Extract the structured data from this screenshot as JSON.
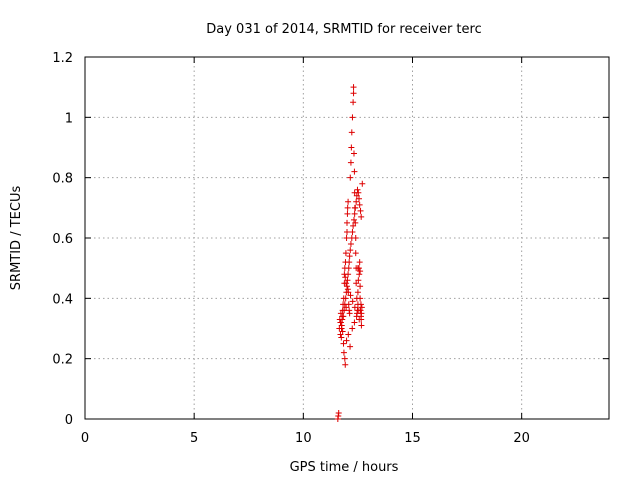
{
  "chart_data": {
    "type": "scatter",
    "title": "Day 031 of 2014, SRMTID for receiver terc",
    "xlabel": "GPS time / hours",
    "ylabel": "SRMTID / TECUs",
    "xlim": [
      0,
      24
    ],
    "ylim": [
      0,
      1.2
    ],
    "xticks": [
      0,
      5,
      10,
      15,
      20
    ],
    "yticks": [
      0,
      0.2,
      0.4,
      0.6,
      0.8,
      1,
      1.2
    ],
    "xtick_labels": [
      "0",
      "5",
      "10",
      "15",
      "20"
    ],
    "ytick_labels": [
      "0",
      "0.2",
      "0.4",
      "0.6",
      "0.8",
      "1",
      "1.2"
    ],
    "grid": true,
    "marker": "+",
    "color": "#dd0000",
    "series": [
      {
        "x": [
          11.58,
          11.6,
          11.62,
          11.65,
          11.67,
          11.7,
          11.7,
          11.72,
          11.74,
          11.75,
          11.76,
          11.78,
          11.8,
          11.8,
          11.82,
          11.84,
          11.85,
          11.86,
          11.88,
          11.88,
          11.9,
          11.9,
          11.92,
          11.93,
          11.95,
          11.96,
          11.98,
          12.0,
          12.0,
          12.02,
          12.03,
          12.05,
          12.06,
          12.08,
          12.1,
          12.12,
          12.15,
          12.18,
          12.2,
          12.22,
          12.25,
          12.28,
          12.3,
          12.3,
          12.32,
          12.34,
          12.35,
          12.36,
          12.38,
          12.4,
          12.4,
          12.42,
          12.42,
          12.45,
          12.48,
          12.5,
          12.5,
          12.52,
          12.55,
          12.56,
          12.58,
          12.6,
          12.6,
          12.62,
          12.64,
          12.65,
          12.66,
          12.68,
          12.7,
          11.72,
          11.75,
          11.78,
          11.83,
          11.87,
          11.9,
          11.94,
          11.97,
          12.0,
          12.02,
          12.05,
          12.08,
          12.1,
          12.12,
          12.15,
          12.18,
          12.22,
          12.25,
          12.28,
          12.32,
          12.35,
          12.38,
          12.42,
          12.45,
          12.48,
          12.52,
          12.55,
          12.58,
          12.62,
          12.65,
          11.92,
          11.96,
          12.04,
          12.16,
          12.26,
          12.36,
          12.46,
          12.56,
          12.66,
          11.98,
          12.06,
          12.14,
          12.24,
          12.34,
          12.44,
          12.54,
          12.64,
          12.5,
          12.6
        ],
        "y": [
          0.0,
          0.01,
          0.02,
          0.3,
          0.33,
          0.28,
          0.32,
          0.35,
          0.27,
          0.3,
          0.31,
          0.34,
          0.29,
          0.36,
          0.38,
          0.25,
          0.4,
          0.22,
          0.45,
          0.48,
          0.2,
          0.5,
          0.18,
          0.52,
          0.55,
          0.37,
          0.6,
          0.62,
          0.65,
          0.68,
          0.7,
          0.72,
          0.42,
          0.38,
          0.36,
          0.35,
          0.8,
          0.85,
          0.9,
          0.95,
          1.0,
          1.05,
          1.08,
          1.1,
          0.88,
          0.82,
          0.75,
          0.7,
          0.65,
          0.6,
          0.55,
          0.5,
          0.45,
          0.4,
          0.36,
          0.38,
          0.42,
          0.46,
          0.5,
          0.48,
          0.52,
          0.44,
          0.4,
          0.36,
          0.34,
          0.33,
          0.35,
          0.37,
          0.78,
          0.32,
          0.3,
          0.33,
          0.34,
          0.36,
          0.38,
          0.4,
          0.42,
          0.44,
          0.46,
          0.48,
          0.5,
          0.52,
          0.54,
          0.56,
          0.58,
          0.6,
          0.62,
          0.64,
          0.66,
          0.68,
          0.7,
          0.72,
          0.74,
          0.76,
          0.75,
          0.73,
          0.71,
          0.69,
          0.67,
          0.47,
          0.45,
          0.43,
          0.41,
          0.39,
          0.37,
          0.35,
          0.33,
          0.31,
          0.26,
          0.28,
          0.24,
          0.3,
          0.32,
          0.34,
          0.36,
          0.38,
          0.5,
          0.49
        ]
      }
    ]
  }
}
